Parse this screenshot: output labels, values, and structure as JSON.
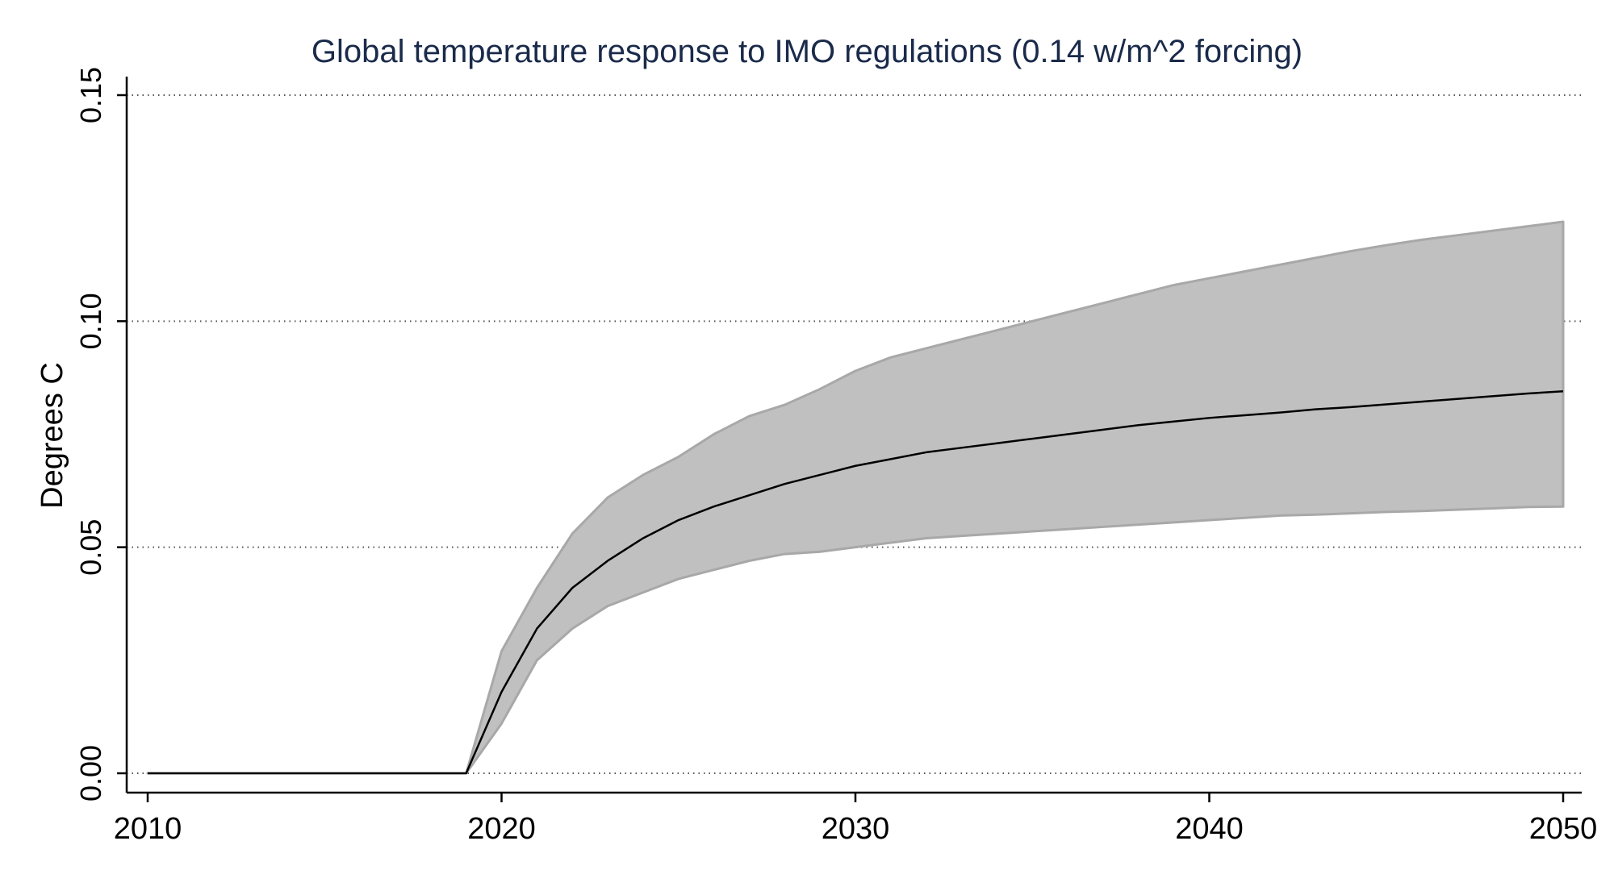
{
  "chart_data": {
    "type": "area",
    "title": "Global temperature response to IMO regulations (0.14 w/m^2 forcing)",
    "xlabel": "",
    "ylabel": "Degrees C",
    "xlim": [
      2010,
      2050
    ],
    "ylim": [
      0,
      0.15
    ],
    "x_ticks": [
      2010,
      2020,
      2030,
      2040,
      2050
    ],
    "x_tick_labels": [
      "2010",
      "2020",
      "2030",
      "2040",
      "2050"
    ],
    "y_ticks": [
      0,
      0.05,
      0.1,
      0.15
    ],
    "y_tick_labels": [
      "0.00",
      "0.05",
      "0.10",
      "0.15"
    ],
    "grid": "horizontal dotted",
    "legend": "none",
    "x": [
      2010,
      2011,
      2012,
      2013,
      2014,
      2015,
      2016,
      2017,
      2018,
      2019,
      2020,
      2021,
      2022,
      2023,
      2024,
      2025,
      2026,
      2027,
      2028,
      2029,
      2030,
      2031,
      2032,
      2033,
      2034,
      2035,
      2036,
      2037,
      2038,
      2039,
      2040,
      2041,
      2042,
      2043,
      2044,
      2045,
      2046,
      2047,
      2048,
      2049,
      2050
    ],
    "series": [
      {
        "values": [
          0,
          0,
          0,
          0,
          0,
          0,
          0,
          0,
          0,
          0,
          0.018,
          0.032,
          0.041,
          0.047,
          0.052,
          0.056,
          0.059,
          0.0615,
          0.064,
          0.066,
          0.068,
          0.0695,
          0.071,
          0.072,
          0.073,
          0.074,
          0.075,
          0.076,
          0.077,
          0.0778,
          0.0786,
          0.0792,
          0.0798,
          0.0805,
          0.081,
          0.0816,
          0.0822,
          0.0828,
          0.0834,
          0.084,
          0.0845
        ],
        "color": "#000000"
      }
    ],
    "band": {
      "lower": [
        0,
        0,
        0,
        0,
        0,
        0,
        0,
        0,
        0,
        0,
        0.011,
        0.025,
        0.032,
        0.037,
        0.04,
        0.043,
        0.045,
        0.047,
        0.0485,
        0.049,
        0.05,
        0.051,
        0.052,
        0.0525,
        0.053,
        0.0535,
        0.054,
        0.0545,
        0.055,
        0.0555,
        0.056,
        0.0565,
        0.057,
        0.0572,
        0.0575,
        0.0578,
        0.058,
        0.0583,
        0.0586,
        0.0589,
        0.059
      ],
      "upper": [
        0,
        0,
        0,
        0,
        0,
        0,
        0,
        0,
        0,
        0,
        0.027,
        0.041,
        0.053,
        0.061,
        0.066,
        0.07,
        0.075,
        0.079,
        0.0815,
        0.085,
        0.089,
        0.092,
        0.094,
        0.096,
        0.098,
        0.1,
        0.102,
        0.104,
        0.106,
        0.108,
        0.1095,
        0.111,
        0.1125,
        0.114,
        0.1155,
        0.1168,
        0.118,
        0.119,
        0.12,
        0.121,
        0.122
      ],
      "color": "#c0c0c0",
      "edge_color": "#a8a8a8"
    },
    "colors": {
      "title": "#1a2a4a",
      "axis": "#000000",
      "grid": "#555555"
    }
  }
}
